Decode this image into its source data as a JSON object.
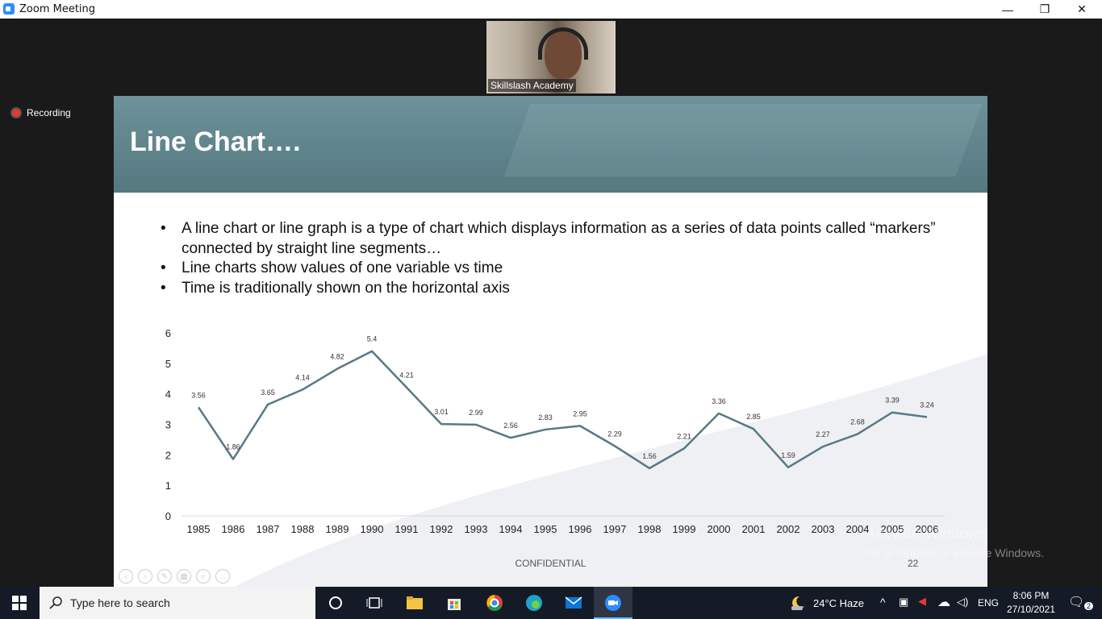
{
  "window": {
    "title": "Zoom Meeting",
    "minimize_glyph": "—",
    "restore_glyph": "❐",
    "close_glyph": "✕"
  },
  "meeting": {
    "participant_name": "Skillslash Academy",
    "recording_label": "Recording"
  },
  "slide": {
    "title": "Line Chart….",
    "bullets": [
      "A line chart or line graph is a type of chart which displays information as a series of data points called “markers” connected by straight line segments…",
      "Line charts show values of one variable vs time",
      "Time is traditionally shown on the horizontal axis"
    ],
    "footer": "CONFIDENTIAL",
    "page_number": "22",
    "line_color": "#587887"
  },
  "chart_data": {
    "type": "line",
    "title": "",
    "xlabel": "",
    "ylabel": "",
    "ylim": [
      0,
      6
    ],
    "yticks": [
      0,
      1,
      2,
      3,
      4,
      5,
      6
    ],
    "x": [
      "1985",
      "1986",
      "1987",
      "1988",
      "1989",
      "1990",
      "1991",
      "1992",
      "1993",
      "1994",
      "1995",
      "1996",
      "1997",
      "1998",
      "1999",
      "2000",
      "2001",
      "2002",
      "2003",
      "2004",
      "2005",
      "2006"
    ],
    "series": [
      {
        "name": "",
        "values": [
          3.56,
          1.86,
          3.65,
          4.14,
          4.82,
          5.4,
          4.21,
          3.01,
          2.99,
          2.56,
          2.83,
          2.95,
          2.29,
          1.56,
          2.21,
          3.36,
          2.85,
          1.59,
          2.27,
          2.68,
          3.39,
          3.24
        ]
      }
    ],
    "grid": false,
    "data_labels": true
  },
  "watermark": {
    "line1": "Activate Windows",
    "line2": "Go to Settings to activate Windows."
  },
  "taskbar": {
    "search_placeholder": "Type here to search",
    "weather": "24°C  Haze",
    "language": "ENG",
    "time": "8:06 PM",
    "date": "27/10/2021",
    "notification_count": "2",
    "accent": "#76b9ed"
  }
}
